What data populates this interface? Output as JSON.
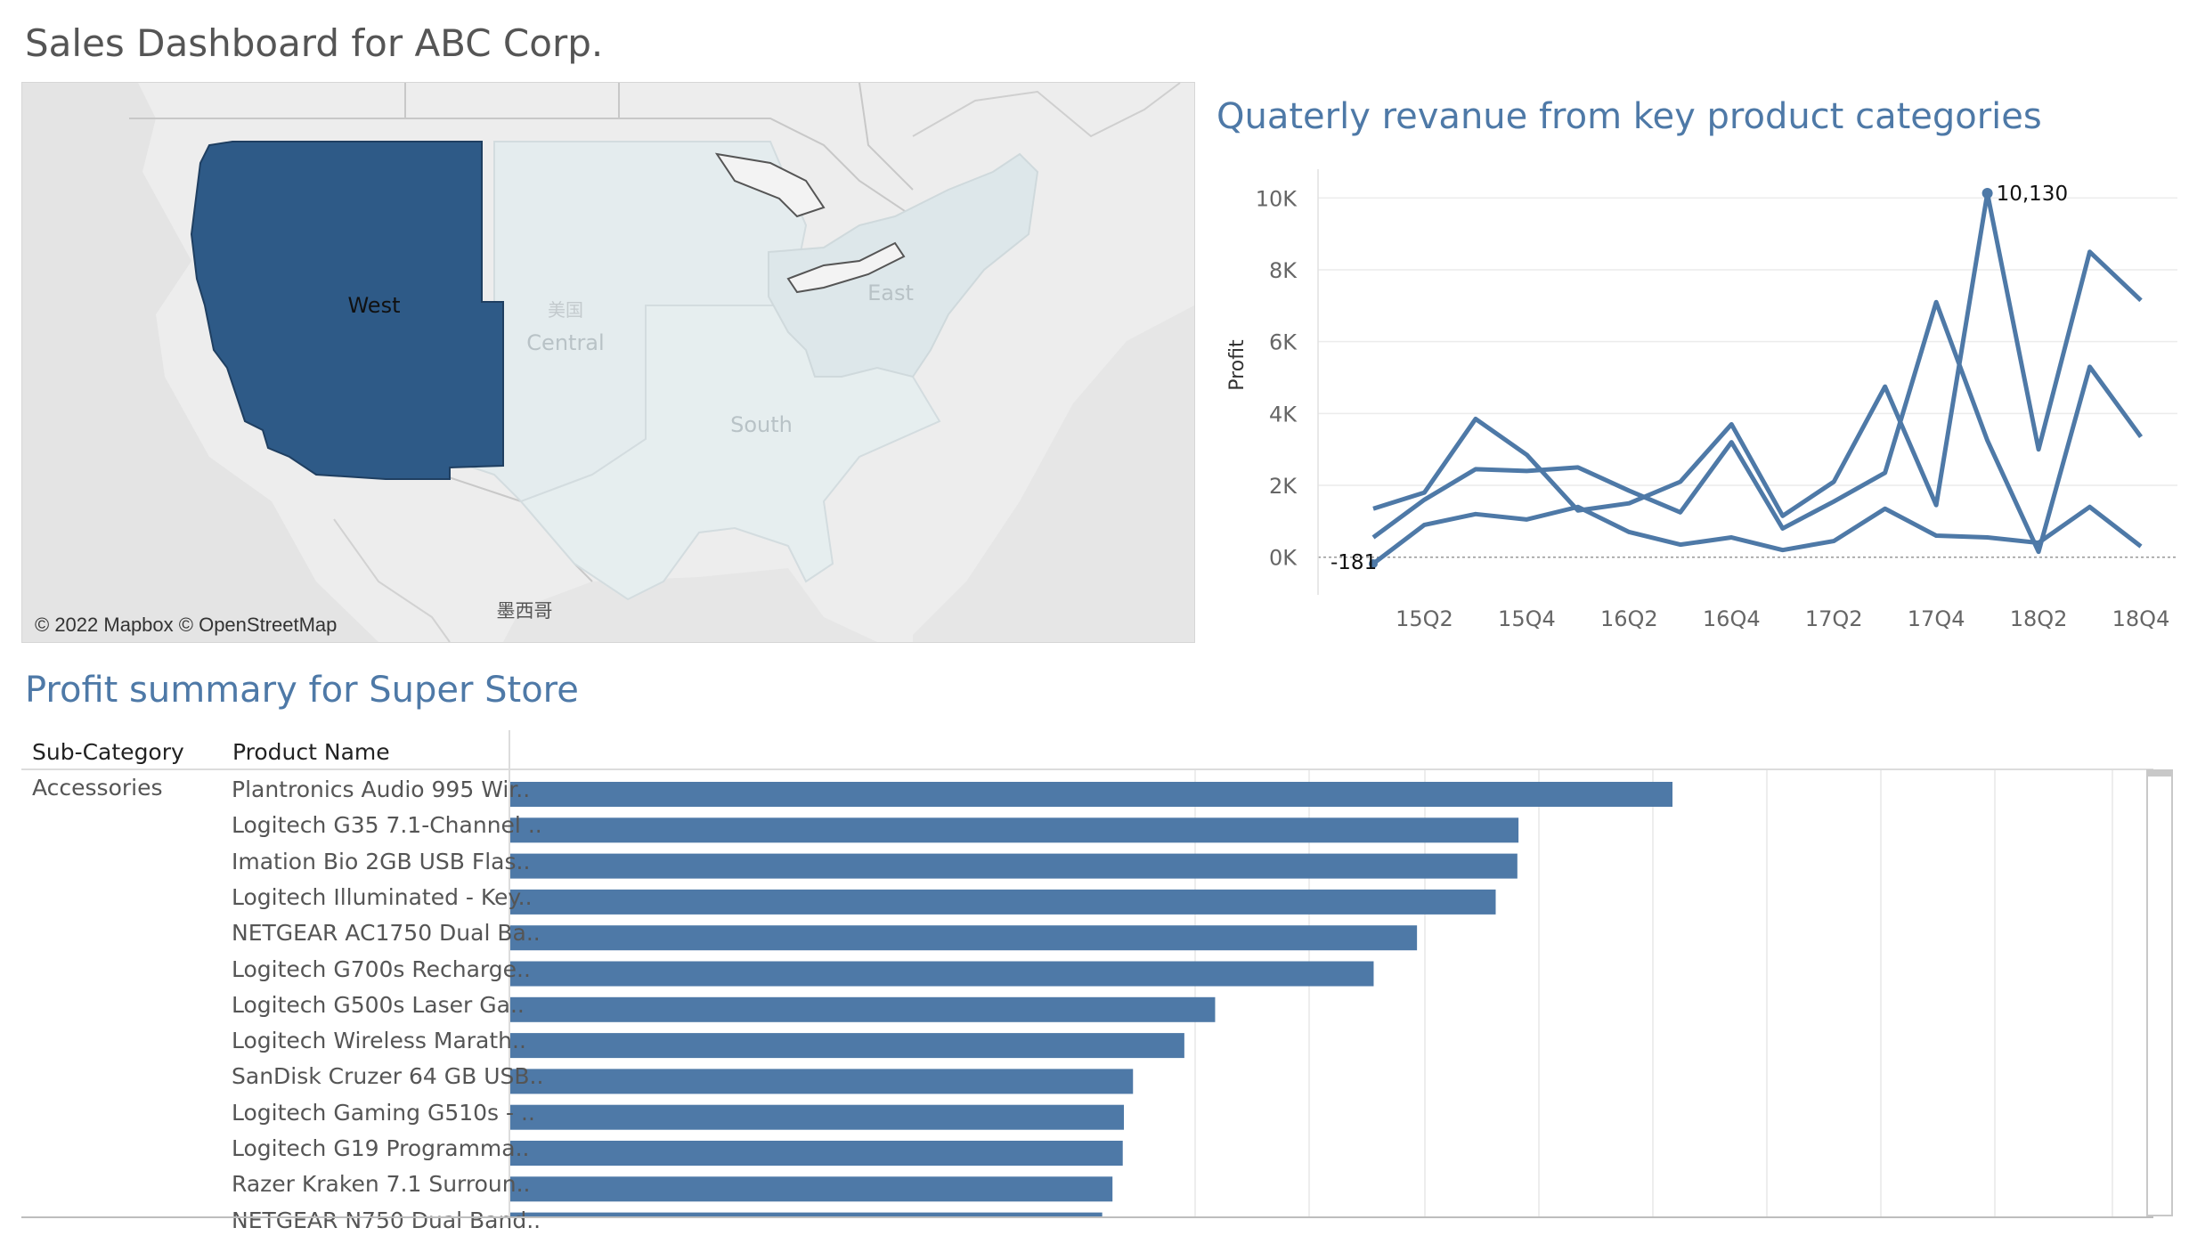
{
  "dashboard": {
    "title": "Sales Dashboard for ABC Corp."
  },
  "colors": {
    "accent": "#4e79a7",
    "region_selected": "#2e5a87",
    "region_dim": "#e3ebed"
  },
  "map": {
    "regions": [
      {
        "name": "West",
        "selected": true
      },
      {
        "name": "Central",
        "selected": false
      },
      {
        "name": "East",
        "selected": false
      },
      {
        "name": "South",
        "selected": false
      }
    ],
    "country_label": "美国",
    "mexico_label": "墨西哥",
    "credit": "© 2022 Mapbox © OpenStreetMap"
  },
  "line_chart": {
    "title": "Quaterly revanue from key product categories",
    "ylabel": "Profit",
    "y_ticks": [
      "10K",
      "8K",
      "6K",
      "4K",
      "2K",
      "0K"
    ],
    "x_ticks": [
      "15Q2",
      "15Q4",
      "16Q2",
      "16Q4",
      "17Q2",
      "17Q4",
      "18Q2",
      "18Q4"
    ],
    "annotations": {
      "max": "10,130",
      "min": "-181"
    }
  },
  "chart_data": {
    "type": "line",
    "x": [
      "15Q1",
      "15Q2",
      "15Q3",
      "15Q4",
      "16Q1",
      "16Q2",
      "16Q3",
      "16Q4",
      "17Q1",
      "17Q2",
      "17Q3",
      "17Q4",
      "18Q1",
      "18Q2",
      "18Q3",
      "18Q4"
    ],
    "ylabel": "Profit",
    "ylim": [
      -800,
      10800
    ],
    "series": [
      {
        "values": [
          1350,
          1800,
          3850,
          2850,
          1300,
          1500,
          2100,
          3700,
          1150,
          2100,
          4750,
          1450,
          10130,
          3000,
          8500,
          7150
        ]
      },
      {
        "values": [
          550,
          1600,
          2450,
          2400,
          2500,
          1850,
          1250,
          3200,
          800,
          1550,
          2350,
          7100,
          3250,
          150,
          5300,
          3350
        ]
      },
      {
        "values": [
          -181,
          900,
          1200,
          1050,
          1400,
          700,
          350,
          550,
          200,
          450,
          1350,
          600,
          550,
          400,
          1400,
          300
        ]
      }
    ]
  },
  "bar_table": {
    "title": "Profit summary for Super Store",
    "headers": {
      "sub_category": "Sub-Category",
      "product_name": "Product Name"
    },
    "sub_category": "Accessories",
    "rows": [
      {
        "product": "Plantronics Audio 995 Wir..",
        "value": 1019
      },
      {
        "product": "Logitech G35 7.1-Channel ..",
        "value": 884
      },
      {
        "product": "Imation Bio 2GB USB Flas..",
        "value": 883
      },
      {
        "product": "Logitech Illuminated - Key..",
        "value": 864
      },
      {
        "product": "NETGEAR AC1750 Dual Ba..",
        "value": 795
      },
      {
        "product": "Logitech G700s Recharge..",
        "value": 757
      },
      {
        "product": "Logitech G500s Laser Ga..",
        "value": 618
      },
      {
        "product": "Logitech Wireless Marath..",
        "value": 591
      },
      {
        "product": "SanDisk Cruzer 64 GB USB..",
        "value": 546
      },
      {
        "product": "Logitech Gaming G510s - ..",
        "value": 538
      },
      {
        "product": "Logitech G19 Programma..",
        "value": 537
      },
      {
        "product": "Razer Kraken 7.1 Surroun..",
        "value": 528
      },
      {
        "product": "NETGEAR N750 Dual Band..",
        "value": 519
      }
    ]
  }
}
